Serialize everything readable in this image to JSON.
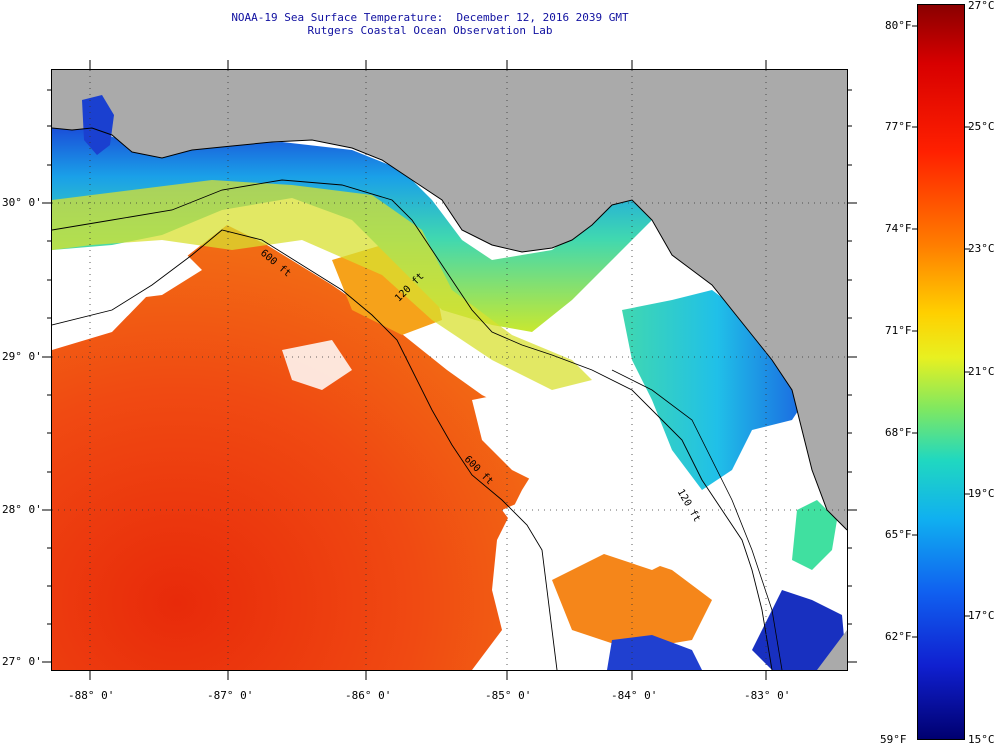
{
  "title": {
    "line1": "NOAA-19 Sea Surface Temperature:  December 12, 2016 2039 GMT",
    "line2": "Rutgers Coastal Ocean Observation Lab"
  },
  "map": {
    "lat_labels": [
      "30° 0'",
      "29° 0'",
      "28° 0'",
      "27° 0'"
    ],
    "lon_labels": [
      "-88° 0'",
      "-87° 0'",
      "-86° 0'",
      "-85° 0'",
      "-84° 0'",
      "-83° 0'"
    ],
    "contour_labels": [
      "120 ft",
      "600 ft",
      "600 ft",
      "120 ft"
    ],
    "colors": {
      "land": "#aaaaaa",
      "cloud": "#ffffff",
      "warm": "#f04010",
      "cool": "#22c8e0"
    }
  },
  "colorbar": {
    "celsius_labels": [
      "27°C",
      "25°C",
      "23°C",
      "21°C",
      "19°C",
      "17°C",
      "15°C"
    ],
    "fahrenheit_labels": [
      "80°F",
      "77°F",
      "74°F",
      "71°F",
      "68°F",
      "65°F",
      "62°F",
      "59°F"
    ]
  }
}
